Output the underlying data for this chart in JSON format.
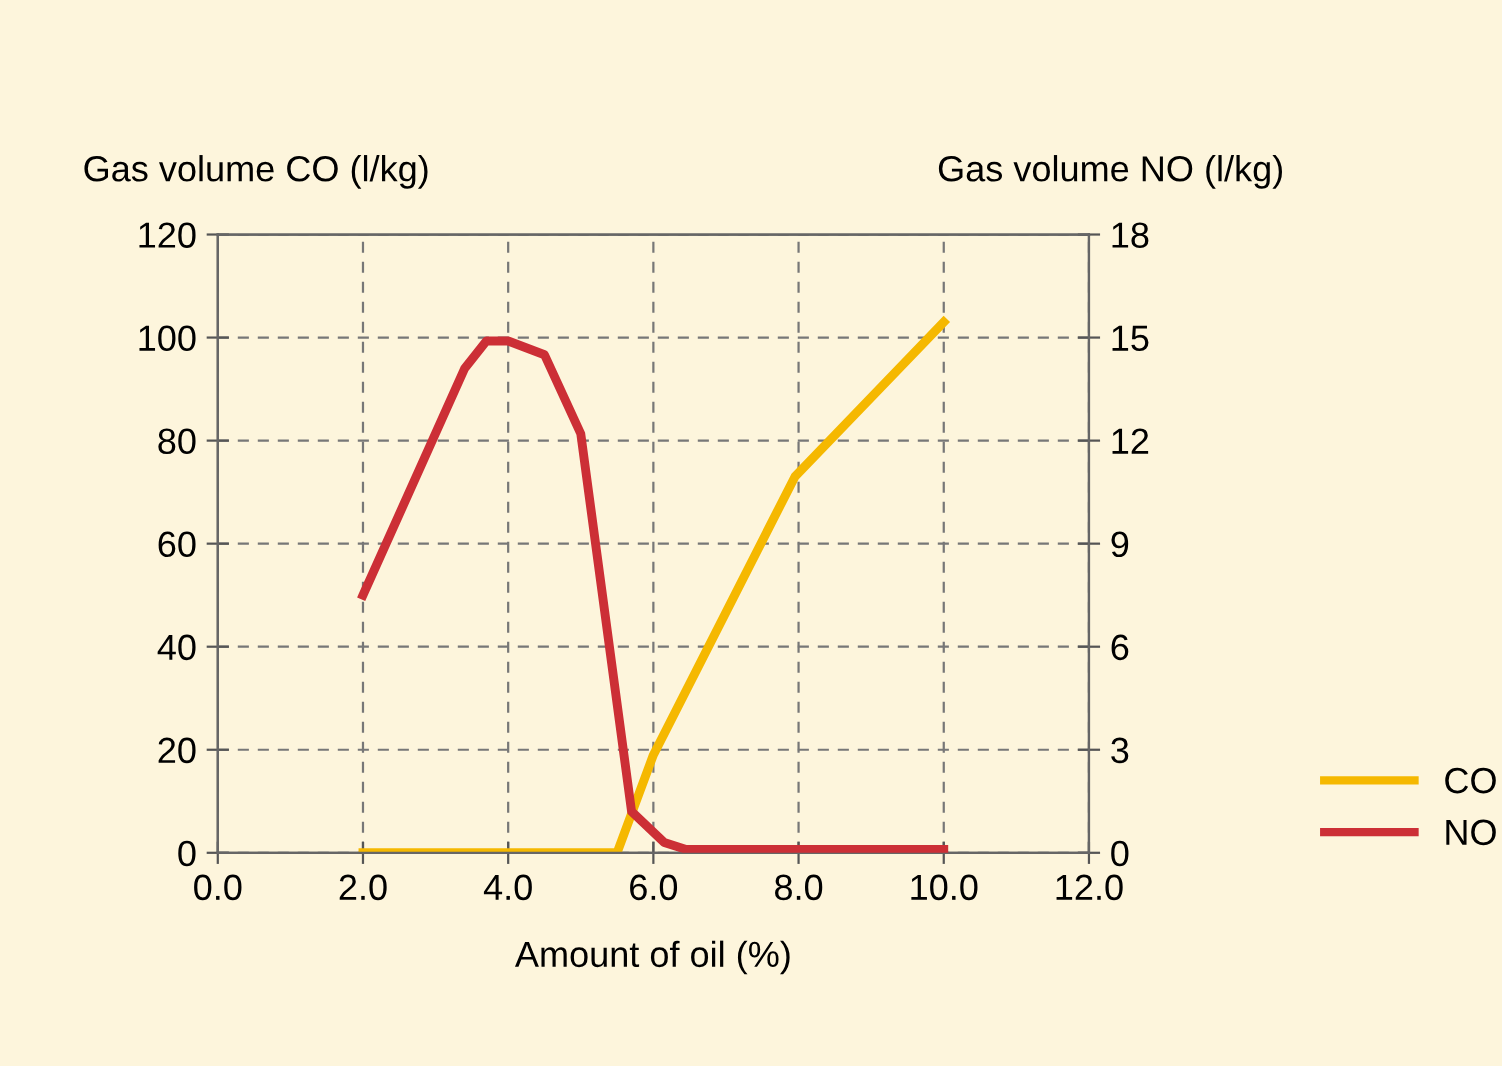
{
  "chart_data": {
    "type": "line",
    "xlabel": "Amount of oil (%)",
    "ylabel": "Gas volume CO (l/kg)",
    "y2label": "Gas volume NO (l/kg)",
    "series": [
      {
        "name": "CO",
        "color": "#f5b800",
        "x": [
          2.0,
          5.5,
          6.0,
          7.95,
          10.0
        ],
        "values": [
          0,
          0,
          19,
          73,
          103
        ]
      },
      {
        "name": "NO",
        "color": "#cc2f36",
        "axis": "y2",
        "x": [
          2.0,
          3.4,
          3.7,
          4.0,
          4.5,
          5.0,
          5.7,
          6.15,
          6.45,
          10.0
        ],
        "values": [
          7.5,
          14.1,
          14.9,
          14.9,
          14.5,
          12.2,
          1.2,
          0.3,
          0.1,
          0.1
        ]
      }
    ],
    "xlim": [
      0,
      12
    ],
    "xticks": [
      {
        "value": 0,
        "label": "0.0"
      },
      {
        "value": 2,
        "label": "2.0"
      },
      {
        "value": 4,
        "label": "4.0"
      },
      {
        "value": 6,
        "label": "6.0"
      },
      {
        "value": 8,
        "label": "8.0"
      },
      {
        "value": 10,
        "label": "10.0"
      },
      {
        "value": 12,
        "label": "12.0"
      }
    ],
    "ylim": [
      0,
      120
    ],
    "yticks": [
      0,
      20,
      40,
      60,
      80,
      100,
      120
    ],
    "y2lim": [
      0,
      18
    ],
    "y2ticks": [
      0,
      3,
      6,
      9,
      12,
      15,
      18
    ],
    "grid": true,
    "legend": "bottom right",
    "line_style": "solid",
    "marker": "none"
  }
}
